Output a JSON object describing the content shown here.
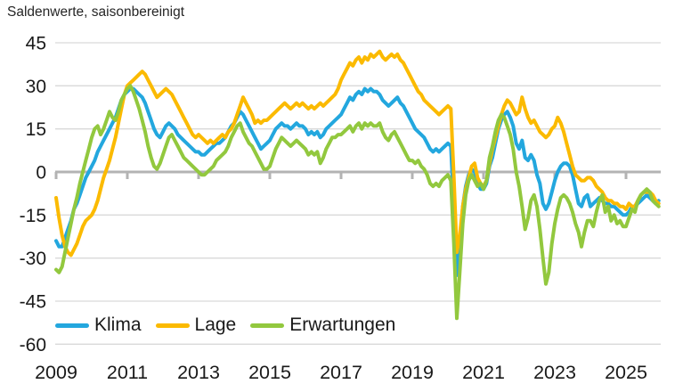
{
  "title": "Saldenwerte, saisonbereinigt",
  "y_axis": {
    "ticks": [
      45,
      30,
      15,
      0,
      -15,
      -30,
      -45,
      -60
    ]
  },
  "x_axis": {
    "ticks": [
      2009,
      2011,
      2013,
      2015,
      2017,
      2019,
      2021,
      2023,
      2025
    ]
  },
  "legend": {
    "items": [
      {
        "label": "Klima",
        "color": "#23a7de"
      },
      {
        "label": "Lage",
        "color": "#fbba00"
      },
      {
        "label": "Erwartungen",
        "color": "#92c83e"
      }
    ]
  },
  "colors": {
    "gridline": "#d9d9d9",
    "zero_line": "#b3b3b3",
    "text": "#1a1a1a"
  },
  "chart_data": {
    "type": "line",
    "title": "Saldenwerte, saisonbereinigt",
    "frequency": "monthly",
    "start_year": 2009,
    "end_year": 2025,
    "ylim": [
      -60,
      45
    ],
    "y_tick_step": 15,
    "grid": "horizontal",
    "legend_position": "bottom-left-inside",
    "series": [
      {
        "name": "Klima",
        "color": "#23a7de",
        "values": [
          -24,
          -26,
          -26,
          -23,
          -20,
          -17,
          -13,
          -11,
          -8,
          -5,
          -2,
          0,
          2,
          4,
          7,
          9,
          11,
          13,
          15,
          17,
          19,
          22,
          25,
          27,
          28,
          29,
          29,
          28,
          27,
          26,
          24,
          21,
          18,
          15,
          13,
          12,
          14,
          16,
          17,
          16,
          15,
          13,
          12,
          11,
          10,
          9,
          8,
          7,
          7,
          6,
          6,
          7,
          8,
          9,
          10,
          10,
          11,
          12,
          14,
          16,
          17,
          19,
          21,
          20,
          18,
          16,
          14,
          12,
          10,
          8,
          9,
          10,
          11,
          13,
          15,
          16,
          17,
          16,
          16,
          15,
          16,
          17,
          16,
          16,
          15,
          13,
          14,
          13,
          14,
          12,
          13,
          15,
          16,
          17,
          18,
          19,
          20,
          22,
          24,
          26,
          25,
          27,
          28,
          27,
          29,
          28,
          29,
          28,
          28,
          27,
          25,
          24,
          23,
          24,
          25,
          26,
          24,
          23,
          21,
          19,
          17,
          15,
          14,
          13,
          12,
          10,
          8,
          7,
          8,
          7,
          8,
          9,
          10,
          9,
          -12,
          -36,
          -25,
          -12,
          -5,
          -1,
          1,
          0,
          -4,
          -6,
          -6,
          -4,
          2,
          5,
          10,
          15,
          18,
          20,
          21,
          19,
          16,
          10,
          8,
          11,
          5,
          4,
          6,
          4,
          -1,
          -4,
          -11,
          -13,
          -11,
          -7,
          -3,
          0,
          2,
          3,
          3,
          2,
          -1,
          -6,
          -11,
          -12,
          -9,
          -8,
          -12,
          -11,
          -10,
          -9,
          -10,
          -11,
          -11,
          -12,
          -12,
          -13,
          -14,
          -15,
          -15,
          -14,
          -12,
          -12,
          -11,
          -10,
          -9,
          -8,
          -9,
          -10,
          -11,
          -10
        ]
      },
      {
        "name": "Lage",
        "color": "#fbba00",
        "values": [
          -9,
          -16,
          -22,
          -26,
          -28,
          -29,
          -27,
          -25,
          -22,
          -19,
          -17,
          -16,
          -15,
          -13,
          -10,
          -6,
          -2,
          1,
          4,
          8,
          12,
          17,
          22,
          27,
          30,
          31,
          32,
          33,
          34,
          35,
          34,
          32,
          30,
          28,
          26,
          27,
          28,
          29,
          28,
          27,
          25,
          23,
          21,
          19,
          17,
          15,
          13,
          12,
          13,
          12,
          11,
          10,
          11,
          10,
          11,
          12,
          13,
          12,
          14,
          15,
          17,
          20,
          23,
          26,
          24,
          22,
          20,
          17,
          18,
          17,
          18,
          18,
          19,
          20,
          21,
          22,
          23,
          24,
          23,
          22,
          23,
          24,
          23,
          24,
          23,
          22,
          23,
          22,
          23,
          24,
          23,
          24,
          25,
          26,
          27,
          29,
          32,
          34,
          36,
          38,
          37,
          39,
          40,
          38,
          40,
          39,
          41,
          40,
          41,
          42,
          40,
          39,
          40,
          41,
          40,
          41,
          39,
          38,
          36,
          34,
          32,
          30,
          28,
          27,
          25,
          24,
          23,
          22,
          21,
          20,
          21,
          22,
          23,
          22,
          -2,
          -28,
          -22,
          -12,
          -6,
          -2,
          2,
          3,
          -2,
          -4,
          -5,
          -3,
          3,
          8,
          12,
          16,
          20,
          23,
          25,
          24,
          22,
          20,
          21,
          26,
          22,
          19,
          17,
          18,
          16,
          14,
          13,
          12,
          13,
          15,
          16,
          19,
          17,
          14,
          10,
          6,
          2,
          -1,
          -2,
          -3,
          -3,
          -2,
          -2,
          -3,
          -5,
          -6,
          -7,
          -9,
          -10,
          -10,
          -11,
          -11,
          -12,
          -12,
          -13,
          -11,
          -12,
          -12,
          -10,
          -8,
          -7,
          -7,
          -7,
          -8,
          -10,
          -11
        ]
      },
      {
        "name": "Erwartungen",
        "color": "#92c83e",
        "values": [
          -34,
          -35,
          -33,
          -28,
          -23,
          -18,
          -13,
          -9,
          -4,
          0,
          4,
          8,
          12,
          15,
          16,
          13,
          15,
          18,
          21,
          19,
          18,
          21,
          25,
          27,
          29,
          30,
          28,
          25,
          22,
          18,
          14,
          9,
          5,
          2,
          1,
          3,
          6,
          9,
          12,
          13,
          11,
          9,
          7,
          5,
          4,
          3,
          2,
          1,
          0,
          -1,
          -1,
          0,
          1,
          2,
          4,
          5,
          6,
          7,
          9,
          12,
          14,
          16,
          17,
          14,
          12,
          10,
          9,
          7,
          5,
          3,
          1,
          1,
          2,
          5,
          8,
          10,
          12,
          11,
          10,
          9,
          10,
          11,
          10,
          9,
          8,
          6,
          7,
          6,
          7,
          3,
          5,
          8,
          10,
          12,
          12,
          13,
          13,
          14,
          15,
          16,
          14,
          16,
          17,
          15,
          17,
          16,
          17,
          16,
          16,
          17,
          14,
          12,
          11,
          13,
          14,
          12,
          10,
          8,
          6,
          4,
          4,
          3,
          4,
          2,
          1,
          -1,
          -4,
          -5,
          -4,
          -5,
          -3,
          -2,
          -1,
          -3,
          -25,
          -51,
          -35,
          -18,
          -8,
          -3,
          -1,
          -3,
          -5,
          -4,
          -6,
          -3,
          5,
          9,
          14,
          18,
          20,
          19,
          16,
          13,
          8,
          0,
          -5,
          -12,
          -20,
          -16,
          -10,
          -8,
          -12,
          -20,
          -30,
          -39,
          -35,
          -25,
          -18,
          -13,
          -9,
          -8,
          -9,
          -11,
          -14,
          -18,
          -21,
          -26,
          -21,
          -17,
          -17,
          -19,
          -14,
          -10,
          -8,
          -14,
          -12,
          -17,
          -15,
          -18,
          -17,
          -19,
          -19,
          -16,
          -13,
          -14,
          -10,
          -8,
          -7,
          -6,
          -7,
          -10,
          -11,
          -12
        ]
      }
    ]
  }
}
